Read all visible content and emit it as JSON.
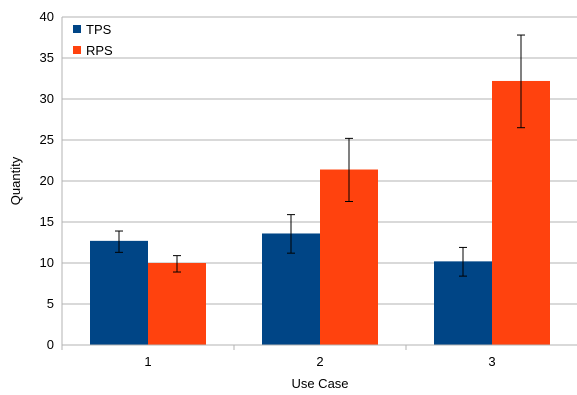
{
  "chart_data": {
    "type": "bar",
    "title": "",
    "xlabel": "Use Case",
    "ylabel": "Quantity",
    "categories": [
      "1",
      "2",
      "3"
    ],
    "ylim": [
      0,
      40
    ],
    "yticks": [
      0,
      5,
      10,
      15,
      20,
      25,
      30,
      35,
      40
    ],
    "grid": "horizontal",
    "legend_position": "top-left",
    "series": [
      {
        "name": "TPS",
        "color": "#004586",
        "values": [
          12.7,
          13.6,
          10.2
        ],
        "error_low": [
          11.3,
          11.2,
          8.4
        ],
        "error_high": [
          13.9,
          15.9,
          11.9
        ]
      },
      {
        "name": "RPS",
        "color": "#ff420e",
        "values": [
          10.0,
          21.4,
          32.2
        ],
        "error_low": [
          8.9,
          17.5,
          26.5
        ],
        "error_high": [
          10.9,
          25.2,
          37.8
        ]
      }
    ]
  }
}
